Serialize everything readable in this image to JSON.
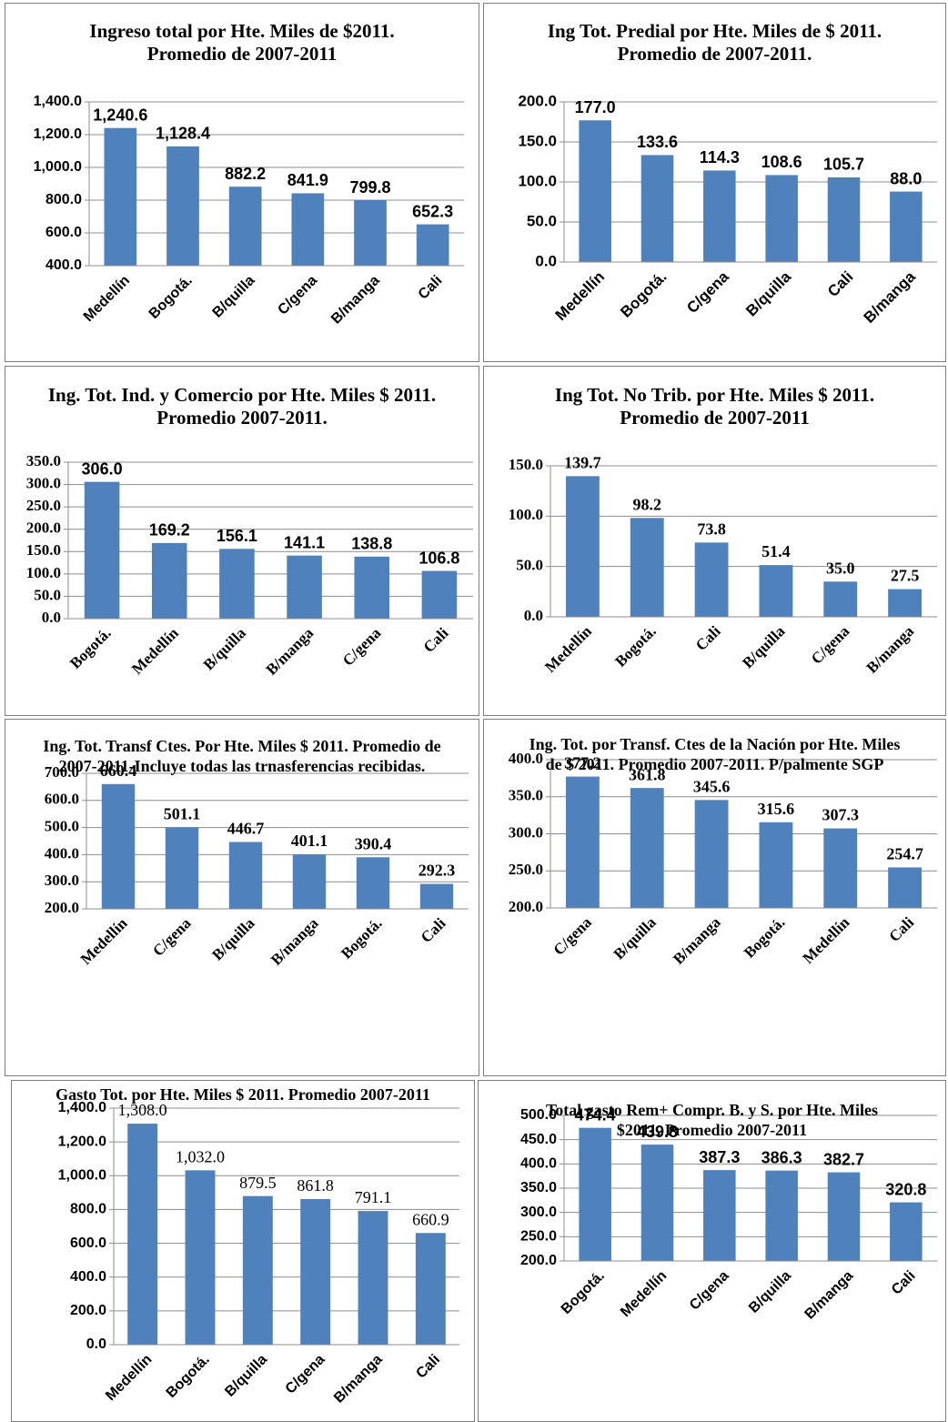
{
  "chart_data": [
    {
      "type": "bar",
      "title": "Ingreso total  por Hte. Miles de $2011. Promedio de 2007-2011",
      "categories": [
        "Medellín",
        "Bogotá.",
        "B/quilla",
        "C/gena",
        "B/manga",
        "Cali"
      ],
      "values": [
        1240.6,
        1128.4,
        882.2,
        841.9,
        799.8,
        652.3
      ],
      "value_labels": [
        "1,240.6",
        "1,128.4",
        "882.2",
        "841.9",
        "799.8",
        "652.3"
      ],
      "color": "#4f81bd",
      "ylim": [
        400,
        1400
      ],
      "yticks": [
        {
          "value": 400,
          "label": "400.0"
        },
        {
          "value": 600,
          "label": "600.0"
        },
        {
          "value": 800,
          "label": "800.0"
        },
        {
          "value": 1000,
          "label": "1,000.0"
        },
        {
          "value": 1200,
          "label": "1,200.0"
        },
        {
          "value": 1400,
          "label": "1,400.0"
        }
      ],
      "grid": true
    },
    {
      "type": "bar",
      "title": "Ing Tot. Predial  por Hte. Miles de $ 2011. Promedio  de 2007-2011.",
      "categories": [
        "Medellín",
        "Bogotá.",
        "C/gena",
        "B/quilla",
        "Cali",
        "B/manga"
      ],
      "values": [
        177.0,
        133.6,
        114.3,
        108.6,
        105.7,
        88.0
      ],
      "value_labels": [
        "177.0",
        "133.6",
        "114.3",
        "108.6",
        "105.7",
        "88.0"
      ],
      "color": "#4f81bd",
      "ylim": [
        0,
        200
      ],
      "yticks": [
        {
          "value": 0,
          "label": "0.0"
        },
        {
          "value": 50,
          "label": "50.0"
        },
        {
          "value": 100,
          "label": "100.0"
        },
        {
          "value": 150,
          "label": "150.0"
        },
        {
          "value": 200,
          "label": "200.0"
        }
      ],
      "grid": true
    },
    {
      "type": "bar",
      "title": "Ing. Tot. Ind. y Comercio por Hte. Miles $ 2011. Promedio 2007-2011.",
      "categories": [
        "Bogotá.",
        "Medellín",
        "B/quilla",
        "B/manga",
        "C/gena",
        "Cali"
      ],
      "values": [
        306.0,
        169.2,
        156.1,
        141.1,
        138.8,
        106.8
      ],
      "value_labels": [
        "306.0",
        "169.2",
        "156.1",
        "141.1",
        "138.8",
        "106.8"
      ],
      "color": "#4f81bd",
      "ylim": [
        0,
        350
      ],
      "yticks": [
        {
          "value": 0,
          "label": "0.0"
        },
        {
          "value": 50,
          "label": "50.0"
        },
        {
          "value": 100,
          "label": "100.0"
        },
        {
          "value": 150,
          "label": "150.0"
        },
        {
          "value": 200,
          "label": "200.0"
        },
        {
          "value": 250,
          "label": "250.0"
        },
        {
          "value": 300,
          "label": "300.0"
        },
        {
          "value": 350,
          "label": "350.0"
        }
      ],
      "grid": true
    },
    {
      "type": "bar",
      "title": "Ing Tot. No Trib. por Hte. Miles $ 2011. Promedio de 2007-2011",
      "categories": [
        "Medellín",
        "Bogotá.",
        "Cali",
        "B/quilla",
        "C/gena",
        "B/manga"
      ],
      "values": [
        139.7,
        98.2,
        73.8,
        51.4,
        35.0,
        27.5
      ],
      "value_labels": [
        "139.7",
        "98.2",
        "73.8",
        "51.4",
        "35.0",
        "27.5"
      ],
      "color": "#4f81bd",
      "ylim": [
        0,
        150
      ],
      "yticks": [
        {
          "value": 0,
          "label": "0.0"
        },
        {
          "value": 50,
          "label": "50.0"
        },
        {
          "value": 100,
          "label": "100.0"
        },
        {
          "value": 150,
          "label": "150.0"
        }
      ],
      "grid": true
    },
    {
      "type": "bar",
      "title": "Ing. Tot. Transf Ctes. Por Hte. Miles  $ 2011. Promedio de 2007-2011-Incluye todas las trnasferencias recibidas.",
      "categories": [
        "Medellín",
        "C/gena",
        "B/quilla",
        "B/manga",
        "Bogotá.",
        "Cali"
      ],
      "values": [
        660.4,
        501.1,
        446.7,
        401.1,
        390.4,
        292.3
      ],
      "value_labels": [
        "660.4",
        "501.1",
        "446.7",
        "401.1",
        "390.4",
        "292.3"
      ],
      "color": "#4f81bd",
      "ylim": [
        200,
        700
      ],
      "yticks": [
        {
          "value": 200,
          "label": "200.0"
        },
        {
          "value": 300,
          "label": "300.0"
        },
        {
          "value": 400,
          "label": "400.0"
        },
        {
          "value": 500,
          "label": "500.0"
        },
        {
          "value": 600,
          "label": "600.0"
        },
        {
          "value": 700,
          "label": "700.0"
        }
      ],
      "grid": true
    },
    {
      "type": "bar",
      "title": "Ing. Tot. por Transf. Ctes de la Nación por Hte. Miles de $ 2011. Promedio 2007-2011. P/palmente SGP",
      "categories": [
        "C/gena",
        "B/quilla",
        "B/manga",
        "Bogotá.",
        "Medellín",
        "Cali"
      ],
      "values": [
        377.2,
        361.8,
        345.6,
        315.6,
        307.3,
        254.7
      ],
      "value_labels": [
        "377.2",
        "361.8",
        "345.6",
        "315.6",
        "307.3",
        "254.7"
      ],
      "color": "#4f81bd",
      "ylim": [
        200,
        400
      ],
      "yticks": [
        {
          "value": 200,
          "label": "200.0"
        },
        {
          "value": 250,
          "label": "250.0"
        },
        {
          "value": 300,
          "label": "300.0"
        },
        {
          "value": 350,
          "label": "350.0"
        },
        {
          "value": 400,
          "label": "400.0"
        }
      ],
      "grid": true
    },
    {
      "type": "bar",
      "title": "Gasto Tot. por Hte. Miles $ 2011. Promedio 2007-2011",
      "categories": [
        "Medellín",
        "Bogotá.",
        "B/quilla",
        "C/gena",
        "B/manga",
        "Cali"
      ],
      "values": [
        1308.0,
        1032.0,
        879.5,
        861.8,
        791.1,
        660.9
      ],
      "value_labels": [
        "1,308.0",
        "1,032.0",
        "879.5",
        "861.8",
        "791.1",
        "660.9"
      ],
      "color": "#4f81bd",
      "ylim": [
        0,
        1400
      ],
      "yticks": [
        {
          "value": 0,
          "label": "0.0"
        },
        {
          "value": 200,
          "label": "200.0"
        },
        {
          "value": 400,
          "label": "400.0"
        },
        {
          "value": 600,
          "label": "600.0"
        },
        {
          "value": 800,
          "label": "800.0"
        },
        {
          "value": 1000,
          "label": "1,000.0"
        },
        {
          "value": 1200,
          "label": "1,200.0"
        },
        {
          "value": 1400,
          "label": "1,400.0"
        }
      ],
      "grid": true
    },
    {
      "type": "bar",
      "title": "Total gasto Rem+ Compr. B. y S. por Hte. Miles $2011.  Promedio 2007-2011",
      "categories": [
        "Bogotá.",
        "Medellín",
        "C/gena",
        "B/quilla",
        "B/manga",
        "Cali"
      ],
      "values": [
        474.4,
        439.8,
        387.3,
        386.3,
        382.7,
        320.8
      ],
      "value_labels": [
        "474.4",
        "439.8",
        "387.3",
        "386.3",
        "382.7",
        "320.8"
      ],
      "color": "#4f81bd",
      "ylim": [
        200,
        500
      ],
      "yticks": [
        {
          "value": 200,
          "label": "200.0"
        },
        {
          "value": 250,
          "label": "250.0"
        },
        {
          "value": 300,
          "label": "300.0"
        },
        {
          "value": 350,
          "label": "350.0"
        },
        {
          "value": 400,
          "label": "400.0"
        },
        {
          "value": 450,
          "label": "450.0"
        },
        {
          "value": 500,
          "label": "500.0"
        }
      ],
      "grid": true
    }
  ]
}
